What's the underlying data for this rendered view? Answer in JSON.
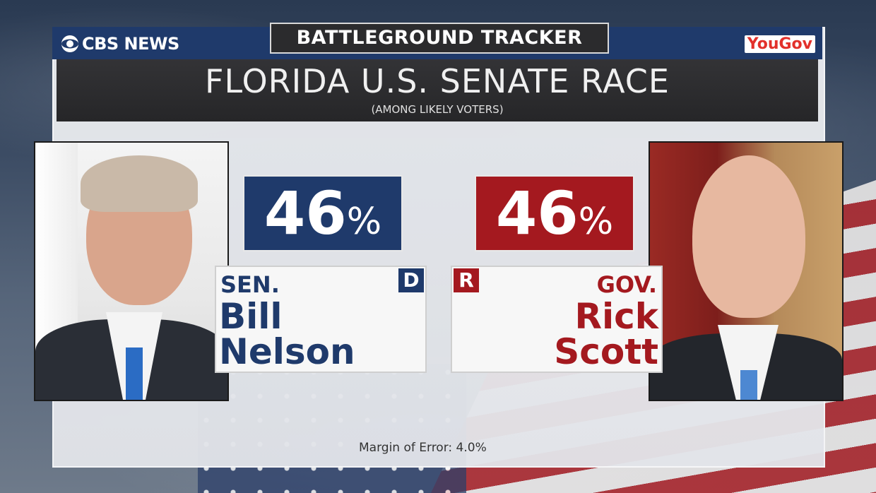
{
  "header": {
    "network_logo": "CBS NEWS",
    "partner_logo": "YouGov",
    "tracker_label": "BATTLEGROUND TRACKER",
    "title": "FLORIDA U.S. SENATE RACE",
    "subtitle": "(AMONG LIKELY VOTERS)"
  },
  "candidates": {
    "dem": {
      "percent": "46",
      "percent_symbol": "%",
      "party": "D",
      "honorific": "SEN.",
      "first_name": "Bill",
      "last_name": "Nelson",
      "color": "#1f3a6b"
    },
    "rep": {
      "percent": "46",
      "percent_symbol": "%",
      "party": "R",
      "honorific": "GOV.",
      "first_name": "Rick",
      "last_name": "Scott",
      "color": "#a4191f"
    }
  },
  "footer": {
    "margin_of_error_label": "Margin of Error:",
    "margin_of_error_value": "4.0%"
  }
}
